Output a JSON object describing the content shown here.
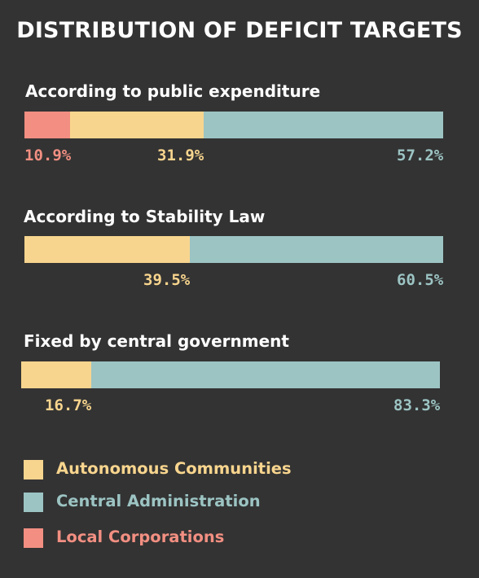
{
  "page_title": "DISTRIBUTION OF DEFICIT TARGETS",
  "colors": {
    "autonomous": "#f8d58e",
    "central": "#9cc4c3",
    "local": "#f28f82"
  },
  "chart_data": [
    {
      "type": "bar",
      "orientation": "horizontal",
      "stacked": true,
      "title": "According to public expenditure",
      "unit": "%",
      "xlim": [
        0,
        100
      ],
      "series": [
        {
          "name": "Local Corporations",
          "key": "local",
          "value": 10.9,
          "label": "10.9%"
        },
        {
          "name": "Autonomous Communities",
          "key": "autonomous",
          "value": 31.9,
          "label": "31.9%"
        },
        {
          "name": "Central Administration",
          "key": "central",
          "value": 57.2,
          "label": "57.2%"
        }
      ]
    },
    {
      "type": "bar",
      "orientation": "horizontal",
      "stacked": true,
      "title": "According to Stability Law",
      "unit": "%",
      "xlim": [
        0,
        100
      ],
      "series": [
        {
          "name": "Autonomous Communities",
          "key": "autonomous",
          "value": 39.5,
          "label": "39.5%"
        },
        {
          "name": "Central Administration",
          "key": "central",
          "value": 60.5,
          "label": "60.5%"
        }
      ]
    },
    {
      "type": "bar",
      "orientation": "horizontal",
      "stacked": true,
      "title": "Fixed by central government",
      "unit": "%",
      "xlim": [
        0,
        100
      ],
      "series": [
        {
          "name": "Autonomous Communities",
          "key": "autonomous",
          "value": 16.7,
          "label": "16.7%"
        },
        {
          "name": "Central Administration",
          "key": "central",
          "value": 83.3,
          "label": "83.3%"
        }
      ]
    }
  ],
  "legend": {
    "position": "bottom-left",
    "items": [
      {
        "label": "Autonomous Communities",
        "key": "autonomous"
      },
      {
        "label": "Central Administration",
        "key": "central"
      },
      {
        "label": "Local Corporations",
        "key": "local"
      }
    ]
  }
}
